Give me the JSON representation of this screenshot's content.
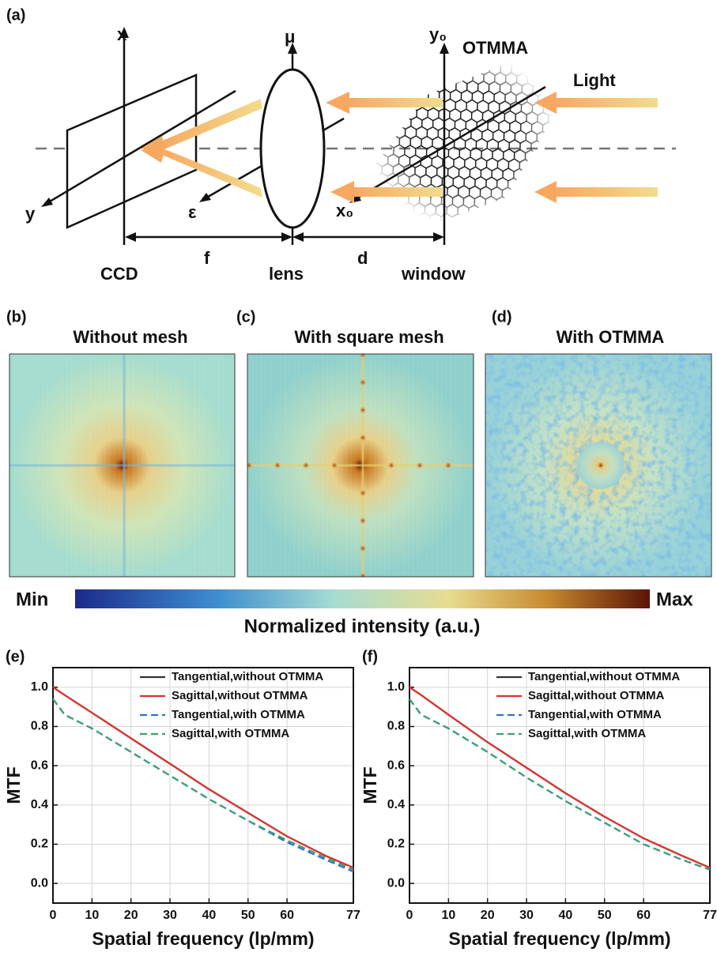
{
  "panel_a": {
    "label": "(a)",
    "x_axis": "x",
    "mu_axis": "μ",
    "y0_axis": "y₀",
    "mesh": "OTMMA",
    "light": "Light",
    "y_axis": "y",
    "eps_axis": "ε",
    "x0_axis": "x₀",
    "ccd": "CCD",
    "f": "f",
    "lens": "lens",
    "d": "d",
    "window": "window"
  },
  "panels": [
    {
      "label": "(b)",
      "title": "Without mesh"
    },
    {
      "label": "(c)",
      "title": "With square mesh"
    },
    {
      "label": "(d)",
      "title": "With OTMMA"
    }
  ],
  "colorbar": {
    "min": "Min",
    "max": "Max",
    "title": "Normalized intensity (a.u.)"
  },
  "chart_data": [
    {
      "type": "line",
      "title": "(e)",
      "x_label": "Spatial frequency (lp/mm)",
      "y_label": "MTF",
      "x": [
        0,
        3,
        10,
        20,
        30,
        40,
        50,
        60,
        70,
        77
      ],
      "series": [
        {
          "name": "Tangential,without OTMMA",
          "color": "#333333",
          "style": "solid",
          "values": [
            1.0,
            0.96,
            0.87,
            0.74,
            0.61,
            0.48,
            0.36,
            0.24,
            0.14,
            0.08
          ]
        },
        {
          "name": "Sagittal,without OTMMA",
          "color": "#e0302c",
          "style": "solid",
          "values": [
            1.0,
            0.96,
            0.87,
            0.74,
            0.61,
            0.48,
            0.36,
            0.24,
            0.14,
            0.08
          ]
        },
        {
          "name": "Tangential,with OTMMA",
          "color": "#2f6fd8",
          "style": "dashed",
          "values": [
            0.94,
            0.86,
            0.79,
            0.67,
            0.55,
            0.43,
            0.32,
            0.21,
            0.12,
            0.06
          ]
        },
        {
          "name": "Sagittal,with OTMMA",
          "color": "#3aa070",
          "style": "dashed",
          "values": [
            0.94,
            0.86,
            0.79,
            0.67,
            0.55,
            0.43,
            0.32,
            0.22,
            0.13,
            0.07
          ]
        }
      ],
      "xlim": [
        0,
        77
      ],
      "xticks": [
        0,
        10,
        20,
        30,
        40,
        50,
        60,
        77
      ],
      "ylim": [
        -0.1,
        1.1
      ],
      "yticks": [
        {
          "value": 0,
          "label": "0.0"
        },
        0.2,
        0.4,
        0.6,
        0.8,
        {
          "value": 1,
          "label": "1.0"
        }
      ],
      "grid": true,
      "legend": "upper right"
    },
    {
      "type": "line",
      "title": "(f)",
      "x_label": "Spatial frequency (lp/mm)",
      "y_label": "MTF",
      "x": [
        0,
        3,
        10,
        20,
        30,
        40,
        50,
        60,
        70,
        77
      ],
      "series": [
        {
          "name": "Tangential,without OTMMA",
          "color": "#333333",
          "style": "solid",
          "values": [
            1.0,
            0.96,
            0.86,
            0.72,
            0.59,
            0.46,
            0.34,
            0.23,
            0.14,
            0.08
          ]
        },
        {
          "name": "Sagittal,without OTMMA",
          "color": "#e0302c",
          "style": "solid",
          "values": [
            1.0,
            0.96,
            0.86,
            0.72,
            0.59,
            0.46,
            0.34,
            0.23,
            0.14,
            0.08
          ]
        },
        {
          "name": "Tangential,with OTMMA",
          "color": "#2f6fd8",
          "style": "dashed",
          "values": [
            0.94,
            0.86,
            0.79,
            0.67,
            0.54,
            0.42,
            0.31,
            0.2,
            0.12,
            0.07
          ]
        },
        {
          "name": "Sagittal,with OTMMA",
          "color": "#3aa070",
          "style": "dashed",
          "values": [
            0.94,
            0.86,
            0.79,
            0.67,
            0.54,
            0.42,
            0.31,
            0.2,
            0.12,
            0.07
          ]
        }
      ],
      "xlim": [
        0,
        77
      ],
      "xticks": [
        0,
        10,
        20,
        30,
        40,
        50,
        60,
        77
      ],
      "ylim": [
        -0.1,
        1.1
      ],
      "yticks": [
        {
          "value": 0,
          "label": "0.0"
        },
        0.2,
        0.4,
        0.6,
        0.8,
        {
          "value": 1,
          "label": "1.0"
        }
      ],
      "grid": true,
      "legend": "upper right"
    }
  ]
}
